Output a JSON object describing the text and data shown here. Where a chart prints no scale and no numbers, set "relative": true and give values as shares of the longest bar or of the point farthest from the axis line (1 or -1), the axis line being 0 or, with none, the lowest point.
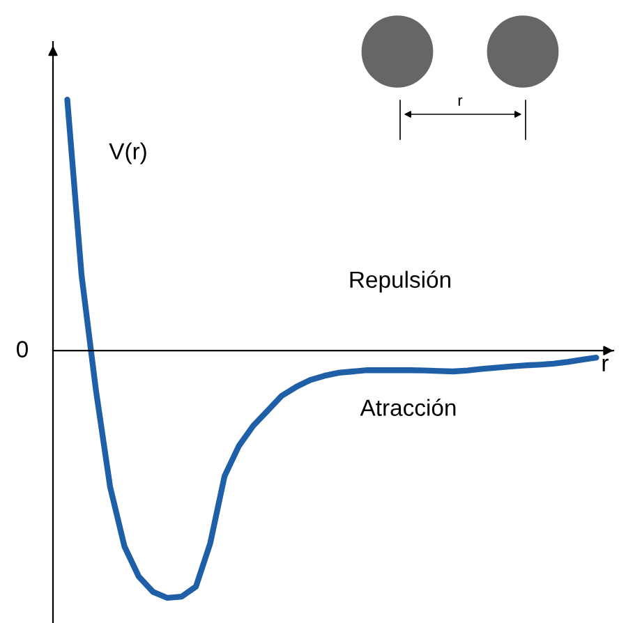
{
  "chart_data": {
    "type": "line",
    "relative": true,
    "xlabel": "r",
    "categories": [
      null,
      null,
      null,
      null,
      null,
      null,
      null,
      null,
      null,
      null,
      null,
      null,
      null,
      null,
      null,
      null,
      null,
      null,
      null,
      null,
      null,
      null,
      null,
      null,
      null,
      null,
      null,
      null,
      null,
      null,
      null,
      null,
      null,
      null,
      null,
      null,
      null,
      null
    ],
    "series": [
      {
        "color": "#1f5fa8",
        "values": [
          1.0,
          0.3,
          -0.156,
          -0.544,
          -0.78,
          -0.9,
          -0.961,
          -0.985,
          -0.98,
          -0.94,
          -0.767,
          -0.5,
          -0.38,
          -0.3,
          -0.24,
          -0.18,
          -0.145,
          -0.117,
          -0.1,
          -0.088,
          -0.083,
          -0.078,
          -0.078,
          -0.078,
          -0.078,
          -0.079,
          -0.081,
          -0.083,
          -0.079,
          -0.073,
          -0.068,
          -0.063,
          -0.059,
          -0.056,
          -0.052,
          -0.045,
          -0.036,
          -0.028
        ]
      }
    ],
    "annotations": [
      "V(r)",
      "Repulsión",
      "Atracción",
      "r",
      "0"
    ],
    "marker": "none",
    "line_style": "solid"
  }
}
